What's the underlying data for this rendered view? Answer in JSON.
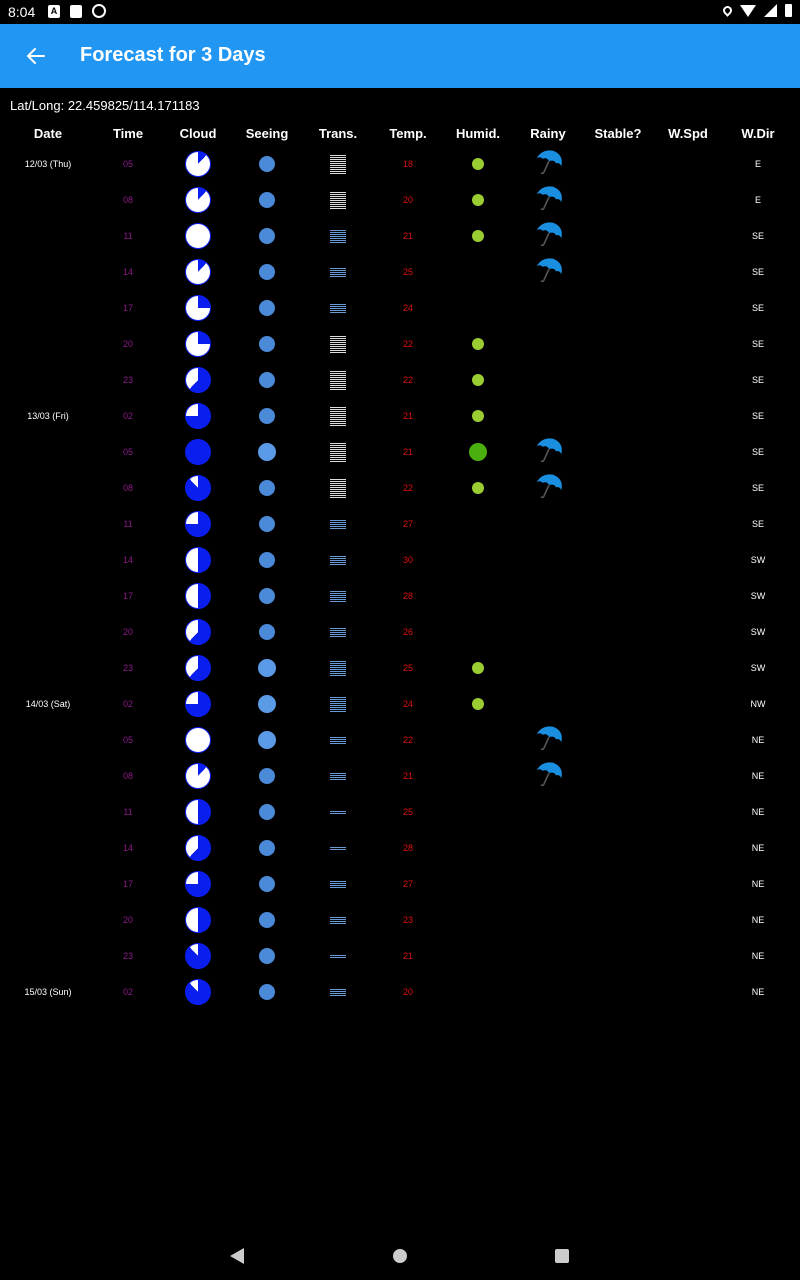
{
  "status_bar": {
    "time": "8:04",
    "left_icons": [
      "a-box-icon",
      "sd-card-icon",
      "sync-icon"
    ],
    "right_icons": [
      "location-icon",
      "wifi-icon",
      "signal-icon",
      "battery-icon"
    ]
  },
  "app_bar": {
    "back_icon": "arrow-back-icon",
    "title": "Forecast for 3 Days",
    "background": "#2196F3"
  },
  "location": {
    "text": "Lat/Long: 22.459825/114.171183"
  },
  "columns": [
    "Date",
    "Time",
    "Cloud",
    "Seeing",
    "Trans.",
    "Temp.",
    "Humid.",
    "Rainy",
    "Stable?",
    "W.Spd",
    "W.Dir"
  ],
  "rows": [
    {
      "date": "12/03 (Thu)",
      "time": "05",
      "cloud": 0.12,
      "seeing": 16,
      "trans": "#dddddd",
      "trans_lines": 10,
      "temp": "18",
      "humid": "#9acd32",
      "humid_size": 12,
      "rainy": true,
      "wdir": "E"
    },
    {
      "date": "",
      "time": "08",
      "cloud": 0.12,
      "seeing": 16,
      "trans": "#dddddd",
      "trans_lines": 9,
      "temp": "20",
      "humid": "#9acd32",
      "humid_size": 12,
      "rainy": true,
      "wdir": "E"
    },
    {
      "date": "",
      "time": "11",
      "cloud": 0.0,
      "seeing": 16,
      "trans": "#6a9ad6",
      "trans_lines": 7,
      "temp": "21",
      "humid": "#9acd32",
      "humid_size": 12,
      "rainy": true,
      "wdir": "SE"
    },
    {
      "date": "",
      "time": "14",
      "cloud": 0.12,
      "seeing": 16,
      "trans": "#6a9ad6",
      "trans_lines": 5,
      "temp": "25",
      "humid": null,
      "humid_size": 0,
      "rainy": true,
      "wdir": "SE"
    },
    {
      "date": "",
      "time": "17",
      "cloud": 0.25,
      "seeing": 16,
      "trans": "#6a9ad6",
      "trans_lines": 5,
      "temp": "24",
      "humid": null,
      "humid_size": 0,
      "rainy": false,
      "wdir": "SE"
    },
    {
      "date": "",
      "time": "20",
      "cloud": 0.25,
      "seeing": 16,
      "trans": "#dddddd",
      "trans_lines": 9,
      "temp": "22",
      "humid": "#9acd32",
      "humid_size": 12,
      "rainy": false,
      "wdir": "SE"
    },
    {
      "date": "",
      "time": "23",
      "cloud": 0.62,
      "seeing": 16,
      "trans": "#dddddd",
      "trans_lines": 10,
      "temp": "22",
      "humid": "#9acd32",
      "humid_size": 12,
      "rainy": false,
      "wdir": "SE"
    },
    {
      "date": "13/03 (Fri)",
      "time": "02",
      "cloud": 0.75,
      "seeing": 16,
      "trans": "#dddddd",
      "trans_lines": 10,
      "temp": "21",
      "humid": "#9acd32",
      "humid_size": 12,
      "rainy": false,
      "wdir": "SE"
    },
    {
      "date": "",
      "time": "05",
      "cloud": 1.0,
      "seeing": 18,
      "trans": "#dddddd",
      "trans_lines": 10,
      "temp": "21",
      "humid": "#4caf10",
      "humid_size": 18,
      "rainy": true,
      "wdir": "SE"
    },
    {
      "date": "",
      "time": "08",
      "cloud": 0.88,
      "seeing": 16,
      "trans": "#dddddd",
      "trans_lines": 10,
      "temp": "22",
      "humid": "#9acd32",
      "humid_size": 12,
      "rainy": true,
      "wdir": "SE"
    },
    {
      "date": "",
      "time": "11",
      "cloud": 0.75,
      "seeing": 16,
      "trans": "#6a9ad6",
      "trans_lines": 5,
      "temp": "27",
      "humid": null,
      "humid_size": 0,
      "rainy": false,
      "wdir": "SE"
    },
    {
      "date": "",
      "time": "14",
      "cloud": 0.5,
      "seeing": 16,
      "trans": "#6a9ad6",
      "trans_lines": 5,
      "temp": "30",
      "humid": null,
      "humid_size": 0,
      "rainy": false,
      "wdir": "SW"
    },
    {
      "date": "",
      "time": "17",
      "cloud": 0.5,
      "seeing": 16,
      "trans": "#6a9ad6",
      "trans_lines": 6,
      "temp": "28",
      "humid": null,
      "humid_size": 0,
      "rainy": false,
      "wdir": "SW"
    },
    {
      "date": "",
      "time": "20",
      "cloud": 0.62,
      "seeing": 16,
      "trans": "#6a9ad6",
      "trans_lines": 5,
      "temp": "26",
      "humid": null,
      "humid_size": 0,
      "rainy": false,
      "wdir": "SW"
    },
    {
      "date": "",
      "time": "23",
      "cloud": 0.62,
      "seeing": 18,
      "trans": "#6a9ad6",
      "trans_lines": 8,
      "temp": "25",
      "humid": "#9acd32",
      "humid_size": 12,
      "rainy": false,
      "wdir": "SW"
    },
    {
      "date": "14/03 (Sat)",
      "time": "02",
      "cloud": 0.75,
      "seeing": 18,
      "trans": "#6a9ad6",
      "trans_lines": 8,
      "temp": "24",
      "humid": "#9acd32",
      "humid_size": 12,
      "rainy": false,
      "wdir": "NW"
    },
    {
      "date": "",
      "time": "05",
      "cloud": 0.0,
      "seeing": 18,
      "trans": "#6a9ad6",
      "trans_lines": 4,
      "temp": "22",
      "humid": null,
      "humid_size": 0,
      "rainy": true,
      "wdir": "NE"
    },
    {
      "date": "",
      "time": "08",
      "cloud": 0.12,
      "seeing": 16,
      "trans": "#6a9ad6",
      "trans_lines": 4,
      "temp": "21",
      "humid": null,
      "humid_size": 0,
      "rainy": true,
      "wdir": "NE"
    },
    {
      "date": "",
      "time": "11",
      "cloud": 0.5,
      "seeing": 16,
      "trans": "#6a9ad6",
      "trans_lines": 2,
      "temp": "25",
      "humid": null,
      "humid_size": 0,
      "rainy": false,
      "wdir": "NE"
    },
    {
      "date": "",
      "time": "14",
      "cloud": 0.62,
      "seeing": 16,
      "trans": "#6a9ad6",
      "trans_lines": 2,
      "temp": "28",
      "humid": null,
      "humid_size": 0,
      "rainy": false,
      "wdir": "NE"
    },
    {
      "date": "",
      "time": "17",
      "cloud": 0.75,
      "seeing": 16,
      "trans": "#6a9ad6",
      "trans_lines": 4,
      "temp": "27",
      "humid": null,
      "humid_size": 0,
      "rainy": false,
      "wdir": "NE"
    },
    {
      "date": "",
      "time": "20",
      "cloud": 0.5,
      "seeing": 16,
      "trans": "#6a9ad6",
      "trans_lines": 4,
      "temp": "23",
      "humid": null,
      "humid_size": 0,
      "rainy": false,
      "wdir": "NE"
    },
    {
      "date": "",
      "time": "23",
      "cloud": 0.88,
      "seeing": 16,
      "trans": "#6a9ad6",
      "trans_lines": 2,
      "temp": "21",
      "humid": null,
      "humid_size": 0,
      "rainy": false,
      "wdir": "NE"
    },
    {
      "date": "15/03 (Sun)",
      "time": "02",
      "cloud": 0.88,
      "seeing": 16,
      "trans": "#6a9ad6",
      "trans_lines": 4,
      "temp": "20",
      "humid": null,
      "humid_size": 0,
      "rainy": false,
      "wdir": "NE"
    }
  ],
  "nav_bar": {
    "icons": [
      "nav-back-icon",
      "nav-home-icon",
      "nav-recents-icon"
    ]
  }
}
